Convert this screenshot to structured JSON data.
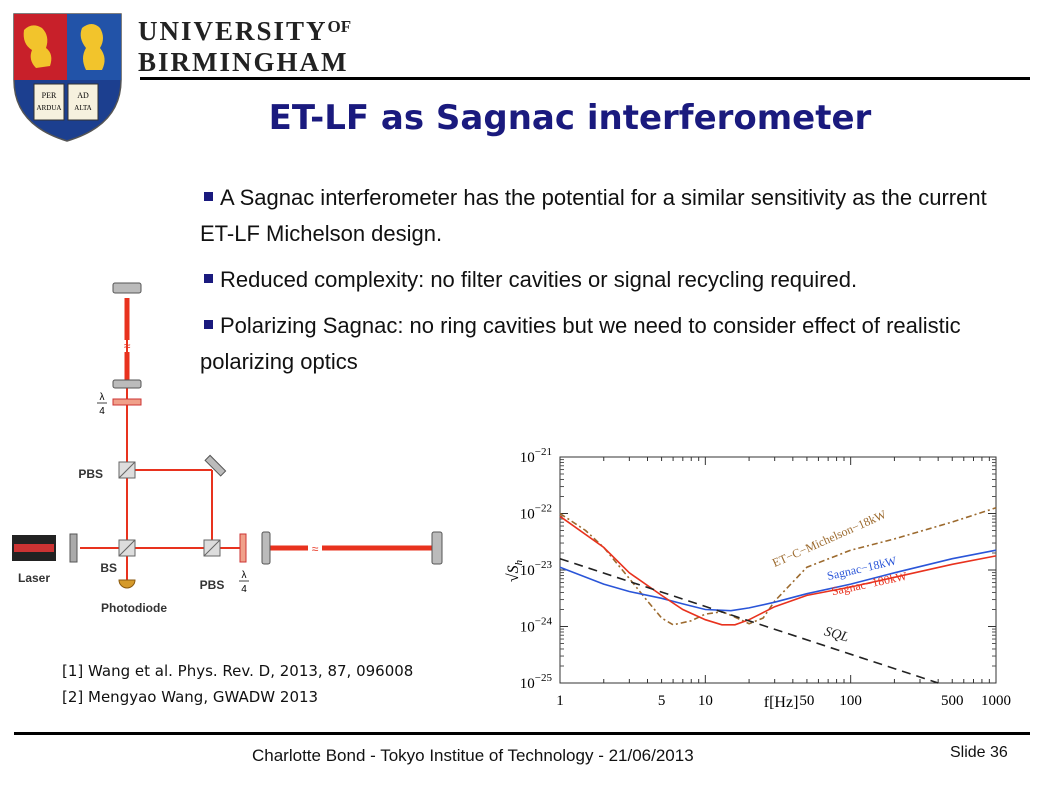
{
  "header": {
    "university_line1": "UNIVERSITY",
    "university_of": "OF",
    "university_line2": "BIRMINGHAM",
    "motto_left_top": "PER",
    "motto_left_bottom": "ARDUA",
    "motto_right_top": "AD",
    "motto_right_bottom": "ALTA"
  },
  "slide": {
    "title": "ET-LF as Sagnac interferometer",
    "bullets": [
      "A Sagnac interferometer has the potential for a similar sensitivity as the current ET-LF Michelson design.",
      "Reduced complexity: no filter cavities or signal recycling required.",
      "Polarizing Sagnac: no ring cavities but we need to consider effect of realistic polarizing optics"
    ],
    "references": [
      "[1] Wang et al. Phys. Rev. D, 2013, 87, 096008",
      "[2]  Mengyao Wang, GWADW 2013"
    ]
  },
  "diagram": {
    "labels": {
      "pbs_top": "PBS",
      "pbs_right": "PBS",
      "bs": "BS",
      "laser": "Laser",
      "photodiode": "Photodiode",
      "lambda": "λ",
      "four": "4"
    },
    "colors": {
      "beam": "#e8321e",
      "optic": "#777777"
    }
  },
  "chart_data": {
    "type": "line",
    "x_scale": "log",
    "y_scale": "log",
    "xlim": [
      1,
      1000
    ],
    "ylim": [
      1e-25,
      1e-21
    ],
    "x_ticks": [
      "1",
      "5",
      "10",
      "50",
      "100",
      "500",
      "1000"
    ],
    "x_tick_values": [
      1,
      5,
      10,
      50,
      100,
      500,
      1000
    ],
    "x_label": "f[Hz]",
    "y_tick_values": [
      -21,
      -22,
      -23,
      -24,
      -25
    ],
    "y_tick_base": "10",
    "y_tick_exponents": [
      "−21",
      "−22",
      "−23",
      "−24",
      "−25"
    ],
    "y_label_root": "√",
    "y_label_var": "S",
    "y_label_sub": "h",
    "series": [
      {
        "name": "ET−C−Michelson−18kW",
        "color": "#9c6a2e",
        "dash": "6,3,2,3",
        "x": [
          1,
          1.5,
          2,
          3,
          4,
          5,
          6,
          8,
          10,
          13,
          15,
          20,
          25,
          30,
          50,
          100,
          200,
          500,
          1000
        ],
        "y": [
          -22.0,
          -22.3,
          -22.6,
          -23.15,
          -23.55,
          -23.85,
          -23.97,
          -23.9,
          -23.78,
          -23.74,
          -23.8,
          -23.95,
          -23.85,
          -23.55,
          -22.95,
          -22.65,
          -22.45,
          -22.15,
          -21.9
        ]
      },
      {
        "name": "Sagnac−18kW",
        "color": "#2a55d8",
        "dash": "",
        "x": [
          1,
          2,
          3,
          5,
          7,
          10,
          15,
          20,
          30,
          50,
          100,
          200,
          500,
          1000
        ],
        "y": [
          -22.95,
          -23.25,
          -23.38,
          -23.5,
          -23.6,
          -23.7,
          -23.72,
          -23.67,
          -23.57,
          -23.42,
          -23.25,
          -23.05,
          -22.8,
          -22.65
        ]
      },
      {
        "name": "Sagnac−180kW",
        "color": "#e8321e",
        "dash": "",
        "x": [
          1,
          2,
          3,
          5,
          7,
          10,
          13,
          16,
          20,
          30,
          50,
          100,
          200,
          500,
          1000
        ],
        "y": [
          -22.05,
          -22.6,
          -23.05,
          -23.45,
          -23.7,
          -23.88,
          -23.97,
          -23.97,
          -23.88,
          -23.65,
          -23.45,
          -23.3,
          -23.13,
          -22.9,
          -22.75
        ]
      },
      {
        "name": "SQL",
        "color": "#222222",
        "dash": "9,6",
        "x": [
          1,
          400
        ],
        "y": [
          -22.8,
          -25.0
        ]
      }
    ]
  },
  "footer": {
    "text": "Charlotte Bond - Tokyo Institue of Technology - 21/06/2013",
    "slide_number": "Slide 36"
  }
}
